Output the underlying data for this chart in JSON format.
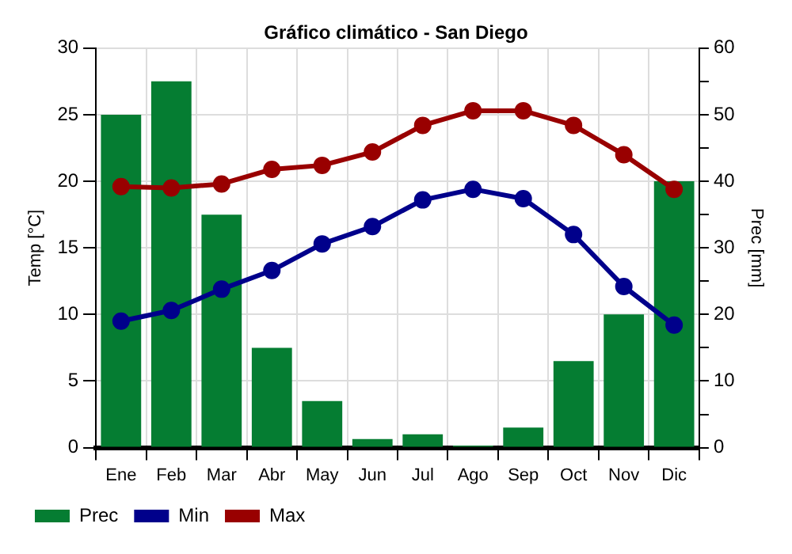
{
  "chart_data": {
    "type": "bar",
    "title": "Gráfico climático - San Diego",
    "ylabel": "Temp [°C]",
    "y2label": "Prec [mm]",
    "categories": [
      "Ene",
      "Feb",
      "Mar",
      "Abr",
      "May",
      "Jun",
      "Jul",
      "Ago",
      "Sep",
      "Oct",
      "Nov",
      "Dic"
    ],
    "series": [
      {
        "name": "Prec",
        "axis": "y2",
        "color": "#057d32",
        "values": [
          50,
          55,
          35,
          15,
          7,
          1.3,
          2,
          0.3,
          3,
          13,
          20,
          40
        ]
      },
      {
        "name": "Min",
        "type": "line",
        "color": "#00008b",
        "values": [
          9.5,
          10.3,
          11.9,
          13.3,
          15.3,
          16.6,
          18.6,
          19.4,
          18.7,
          16.0,
          12.1,
          9.2
        ]
      },
      {
        "name": "Max",
        "type": "line",
        "color": "#990000",
        "values": [
          19.6,
          19.5,
          19.8,
          20.9,
          21.2,
          22.2,
          24.2,
          25.3,
          25.3,
          24.2,
          22.0,
          19.4
        ]
      }
    ],
    "ylim": [
      0,
      30
    ],
    "yticks": [
      0,
      5,
      10,
      15,
      20,
      25,
      30
    ],
    "y2lim": [
      0,
      60
    ],
    "y2ticks": [
      0,
      {
        "value": 5,
        "label": null
      },
      10,
      {
        "value": 15,
        "label": null
      },
      20,
      {
        "value": 25,
        "label": null
      },
      30,
      {
        "value": 35,
        "label": null
      },
      40,
      {
        "value": 45,
        "label": null
      },
      50,
      {
        "value": 55,
        "label": null
      },
      60
    ],
    "grid": true,
    "legend": "bottom left",
    "marker": "circle",
    "line_style": "solid"
  }
}
